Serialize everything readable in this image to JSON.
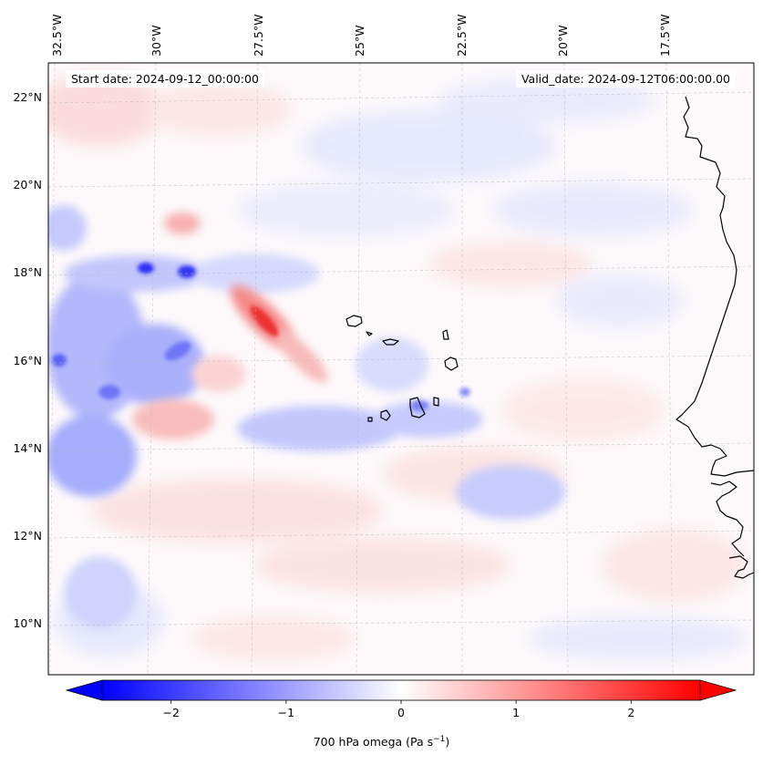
{
  "header": {
    "start_date": "Start date: 2024-09-12_00:00:00",
    "valid_date": "Valid_date: 2024-09-12T06:00:00.00"
  },
  "map": {
    "projection": "lambert-conformal",
    "lon_range": [
      -33.0,
      -15.5
    ],
    "lat_range": [
      9.0,
      22.8
    ],
    "lon_ticks": [
      "32.5°W",
      "30°W",
      "27.5°W",
      "25°W",
      "22.5°W",
      "20°W",
      "17.5°W"
    ],
    "lat_ticks": [
      "22°N",
      "20°N",
      "18°N",
      "16°N",
      "14°N",
      "12°N",
      "10°N"
    ],
    "gridlines": true,
    "coastlines": true,
    "field_colormap": "bwr"
  },
  "colorbar": {
    "title_main": "700 hPa omega (Pa s",
    "title_exp": "−1",
    "title_close": ")",
    "ticks": [
      "−2",
      "−1",
      "0",
      "1",
      "2"
    ],
    "tick_values": [
      -2,
      -1,
      0,
      1,
      2
    ],
    "range": [
      -2.6,
      2.6
    ],
    "extend": "both",
    "colors": {
      "low": "#0000ff",
      "mid": "#ffffff",
      "high": "#ff0000"
    }
  },
  "colors": {
    "coastline": "#000000",
    "grid": "#bbbbbb",
    "frame": "#000000"
  }
}
